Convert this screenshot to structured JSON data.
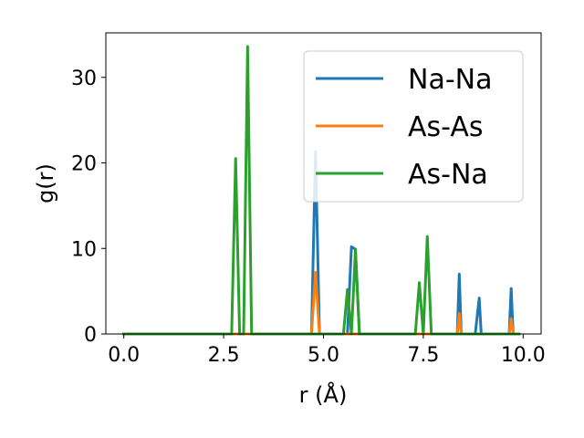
{
  "chart_data": {
    "type": "line",
    "title": "",
    "xlabel": "r (Å)",
    "ylabel": "g(r)",
    "xlim": [
      -0.45,
      10.45
    ],
    "ylim": [
      0,
      35.2
    ],
    "x_ticks": [
      0.0,
      2.5,
      5.0,
      7.5,
      10.0
    ],
    "x_tick_labels": [
      "0.0",
      "2.5",
      "5.0",
      "7.5",
      "10.0"
    ],
    "y_ticks": [
      0,
      10,
      20,
      30
    ],
    "y_tick_labels": [
      "0",
      "10",
      "20",
      "30"
    ],
    "grid": false,
    "legend_position": "top-right",
    "series": [
      {
        "name": "Na-Na",
        "color": "#1f77b4",
        "x": [
          0.0,
          4.7,
          4.8,
          4.9,
          5.6,
          5.7,
          5.8,
          5.9,
          8.35,
          8.4,
          8.45,
          8.8,
          8.9,
          8.95,
          9.65,
          9.7,
          9.75,
          9.9
        ],
        "y": [
          0,
          0,
          21.3,
          0,
          0,
          10.2,
          9.9,
          0,
          0,
          7.0,
          0,
          0,
          4.2,
          0,
          0,
          5.3,
          0,
          0
        ]
      },
      {
        "name": "As-As",
        "color": "#ff7f0e",
        "x": [
          0.0,
          4.7,
          4.8,
          4.9,
          8.35,
          8.4,
          8.45,
          9.65,
          9.7,
          9.75,
          9.9
        ],
        "y": [
          0,
          0,
          7.2,
          0,
          0,
          2.4,
          0,
          0,
          1.8,
          0,
          0
        ]
      },
      {
        "name": "As-Na",
        "color": "#2ca02c",
        "x": [
          0.0,
          2.7,
          2.8,
          2.9,
          3.0,
          3.1,
          3.2,
          5.5,
          5.6,
          5.7,
          5.8,
          5.9,
          7.3,
          7.4,
          7.5,
          7.6,
          7.7,
          9.9
        ],
        "y": [
          0,
          0,
          20.5,
          0,
          0,
          33.6,
          0,
          0,
          5.2,
          0,
          9.8,
          0,
          0,
          6.0,
          0,
          11.4,
          0,
          0
        ]
      }
    ]
  }
}
